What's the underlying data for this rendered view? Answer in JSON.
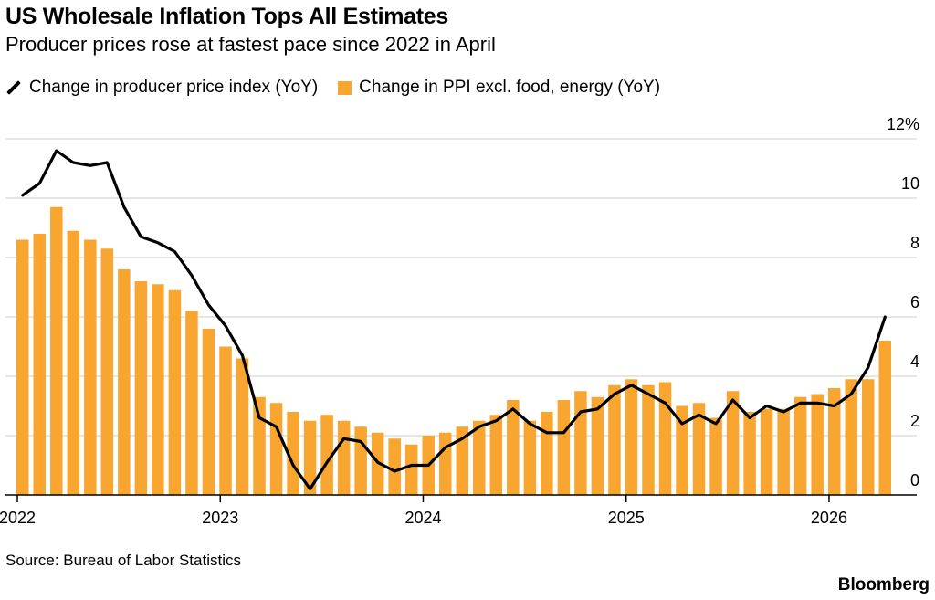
{
  "title": "US Wholesale Inflation Tops All Estimates",
  "subtitle": "Producer prices rose at fastest pace since 2022 in April",
  "source": "Source: Bureau of Labor Statistics",
  "brand": "Bloomberg",
  "colors": {
    "bar": "#F8A630",
    "line": "#000000",
    "grid": "#cccccc",
    "axis": "#000000"
  },
  "chart_data": {
    "type": "bar",
    "x_start": "2022-01",
    "x_ticks": [
      "2022",
      "2023",
      "2024",
      "2025",
      "2026"
    ],
    "y_ticks": [
      "0",
      "2",
      "4",
      "6",
      "8",
      "10",
      "12%"
    ],
    "ylim": [
      0,
      12
    ],
    "grid": true,
    "legend_position": "top-left",
    "series": [
      {
        "name": "Change in producer price index (YoY)",
        "type": "line",
        "values": [
          10.1,
          10.5,
          11.6,
          11.2,
          11.1,
          11.2,
          9.7,
          8.7,
          8.5,
          8.2,
          7.4,
          6.4,
          5.7,
          4.7,
          2.6,
          2.3,
          1.0,
          0.2,
          1.1,
          1.9,
          1.8,
          1.1,
          0.8,
          1.0,
          1.0,
          1.6,
          1.9,
          2.3,
          2.5,
          2.9,
          2.4,
          2.1,
          2.1,
          2.8,
          2.9,
          3.4,
          3.7,
          3.4,
          3.1,
          2.4,
          2.7,
          2.4,
          3.2,
          2.6,
          3.0,
          2.8,
          3.1,
          3.1,
          3.0,
          3.4,
          4.3,
          6.0
        ]
      },
      {
        "name": "Change in PPI excl. food, energy (YoY)",
        "type": "bar",
        "values": [
          8.6,
          8.8,
          9.7,
          8.9,
          8.6,
          8.3,
          7.6,
          7.2,
          7.1,
          6.9,
          6.2,
          5.6,
          5.0,
          4.6,
          3.3,
          3.1,
          2.8,
          2.5,
          2.7,
          2.5,
          2.3,
          2.1,
          1.9,
          1.7,
          2.0,
          2.1,
          2.3,
          2.5,
          2.7,
          3.2,
          2.5,
          2.8,
          3.2,
          3.5,
          3.3,
          3.7,
          3.9,
          3.7,
          3.8,
          3.0,
          3.1,
          2.6,
          3.5,
          2.8,
          2.9,
          2.9,
          3.3,
          3.4,
          3.6,
          3.9,
          3.9,
          5.2
        ]
      }
    ]
  }
}
